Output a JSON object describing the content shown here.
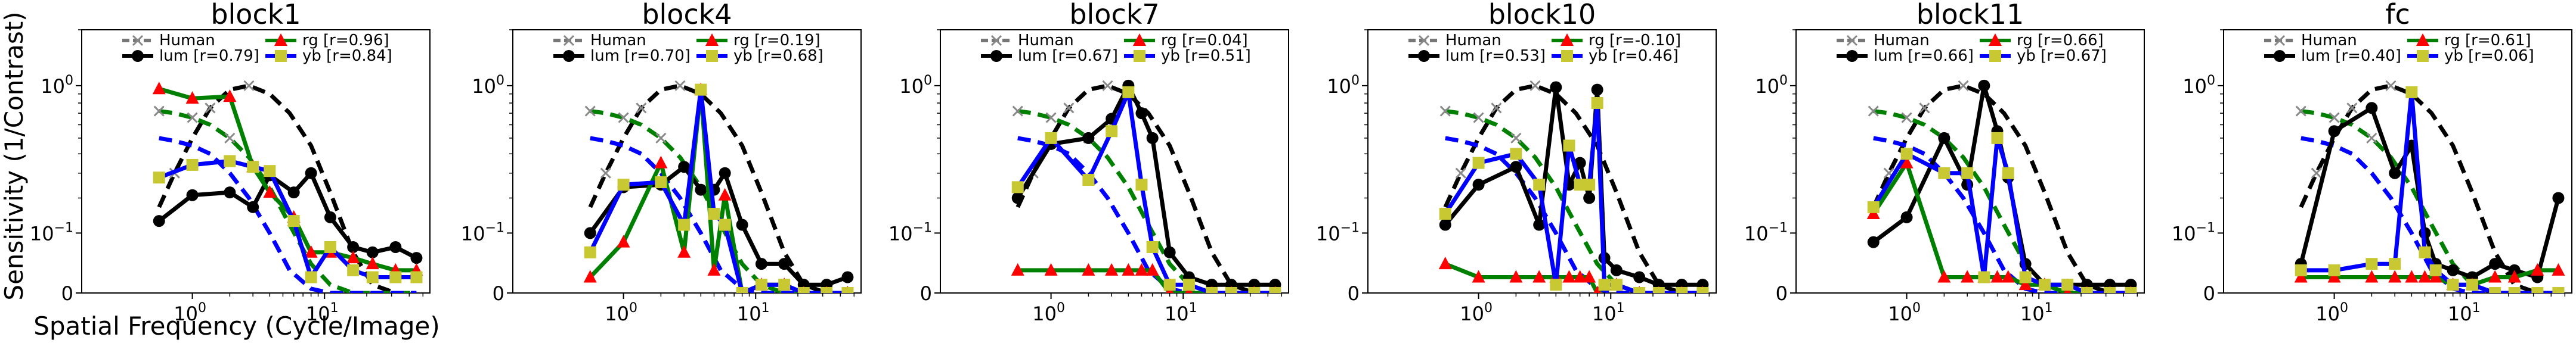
{
  "figure": {
    "ylabel": "Sensitivity (1/Contrast)",
    "xlabel": "Spatial Frequency (Cycle/Image)"
  },
  "legend_labels": {
    "human": "Human",
    "lum": "lum",
    "rg": "rg",
    "yb": "yb"
  },
  "colors": {
    "human": "#000000",
    "lum": "#000000",
    "rg": "#008000",
    "rg_marker": "#ff0000",
    "yb": "#0000ff",
    "yb_marker": "#c8c832"
  },
  "chart_data": [
    {
      "type": "line",
      "title": "block1",
      "xscale": "symlog",
      "yscale": "symlog",
      "xlim": [
        0,
        56
      ],
      "ylim": [
        0,
        2
      ],
      "xticks": [
        "10^0",
        "10^1"
      ],
      "yticks": [
        "0",
        "10^-1",
        "10^0"
      ],
      "legend_position": "top-center",
      "r": {
        "lum": "[r=0.79]",
        "rg": "[r=0.96]",
        "yb": "[r=0.84]"
      },
      "human": {
        "x": [
          0.5,
          0.7,
          1,
          1.4,
          2,
          2.8,
          4,
          5.6,
          8,
          11,
          16,
          22,
          32,
          45
        ],
        "lum": [
          0.17,
          0.3,
          0.5,
          0.75,
          0.95,
          1.0,
          0.9,
          0.7,
          0.45,
          0.22,
          0.06,
          0.01,
          0.0,
          0.0
        ],
        "rg": [
          0.72,
          0.7,
          0.66,
          0.6,
          0.5,
          0.38,
          0.24,
          0.12,
          0.04,
          0.01,
          0.0,
          0.0,
          0.0,
          0.0
        ],
        "yb": [
          0.5,
          0.48,
          0.45,
          0.4,
          0.3,
          0.2,
          0.1,
          0.03,
          0.005,
          0.0,
          0.0,
          0.0,
          0.0,
          0.0
        ]
      },
      "model_x": [
        0.5,
        1,
        2,
        3,
        4,
        6,
        8,
        11,
        16,
        22,
        32,
        45
      ],
      "lum": [
        0.13,
        0.21,
        0.22,
        0.17,
        0.29,
        0.22,
        0.3,
        0.14,
        0.07,
        0.06,
        0.07,
        0.05
      ],
      "rg": [
        0.96,
        0.85,
        0.87,
        0.33,
        0.22,
        0.14,
        0.06,
        0.06,
        0.05,
        0.04,
        0.03,
        0.03
      ],
      "yb": [
        0.28,
        0.34,
        0.36,
        0.33,
        0.31,
        0.13,
        0.02,
        0.07,
        0.03,
        0.02,
        0.02,
        0.02
      ]
    },
    {
      "type": "line",
      "title": "block4",
      "xscale": "symlog",
      "yscale": "symlog",
      "xlim": [
        0,
        56
      ],
      "ylim": [
        0,
        2
      ],
      "xticks": [
        "10^0",
        "10^1"
      ],
      "yticks": [
        "0",
        "10^-1",
        "10^0"
      ],
      "legend_position": "top-center",
      "r": {
        "lum": "[r=0.70]",
        "rg": "[r=0.19]",
        "yb": "[r=0.68]"
      },
      "human": {
        "x": [
          0.5,
          0.7,
          1,
          1.4,
          2,
          2.8,
          4,
          5.6,
          8,
          11,
          16,
          22,
          32,
          45
        ],
        "lum": [
          0.17,
          0.3,
          0.5,
          0.75,
          0.95,
          1.0,
          0.9,
          0.7,
          0.45,
          0.22,
          0.06,
          0.01,
          0.0,
          0.0
        ],
        "rg": [
          0.72,
          0.7,
          0.66,
          0.6,
          0.5,
          0.38,
          0.24,
          0.12,
          0.04,
          0.01,
          0.0,
          0.0,
          0.0,
          0.0
        ],
        "yb": [
          0.5,
          0.48,
          0.45,
          0.4,
          0.3,
          0.2,
          0.1,
          0.03,
          0.005,
          0.0,
          0.0,
          0.0,
          0.0,
          0.0
        ]
      },
      "model_x": [
        0.5,
        1,
        2,
        3,
        4,
        5,
        6,
        8,
        11,
        16,
        22,
        32,
        45
      ],
      "lum": [
        0.1,
        0.24,
        0.25,
        0.33,
        0.23,
        0.23,
        0.3,
        0.12,
        0.04,
        0.04,
        0.01,
        0.01,
        0.02
      ],
      "rg": [
        0.02,
        0.08,
        0.35,
        0.06,
        0.95,
        0.03,
        0.21,
        0.0,
        0.01,
        0.01,
        0.0,
        0.0,
        0.0
      ],
      "yb": [
        0.06,
        0.25,
        0.26,
        0.12,
        0.95,
        0.15,
        0.12,
        0.0,
        0.01,
        0.01,
        0.0,
        0.0,
        0.0
      ]
    },
    {
      "type": "line",
      "title": "block7",
      "xscale": "symlog",
      "yscale": "symlog",
      "xlim": [
        0,
        56
      ],
      "ylim": [
        0,
        2
      ],
      "xticks": [
        "10^0",
        "10^1"
      ],
      "yticks": [
        "0",
        "10^-1",
        "10^0"
      ],
      "legend_position": "top-center",
      "r": {
        "lum": "[r=0.67]",
        "rg": "[r=0.04]",
        "yb": "[r=0.51]"
      },
      "human": {
        "x": [
          0.5,
          0.7,
          1,
          1.4,
          2,
          2.8,
          4,
          5.6,
          8,
          11,
          16,
          22,
          32,
          45
        ],
        "lum": [
          0.17,
          0.3,
          0.5,
          0.75,
          0.95,
          1.0,
          0.9,
          0.7,
          0.45,
          0.22,
          0.06,
          0.01,
          0.0,
          0.0
        ],
        "rg": [
          0.72,
          0.7,
          0.66,
          0.6,
          0.5,
          0.38,
          0.24,
          0.12,
          0.04,
          0.01,
          0.0,
          0.0,
          0.0,
          0.0
        ],
        "yb": [
          0.5,
          0.48,
          0.45,
          0.4,
          0.3,
          0.2,
          0.1,
          0.03,
          0.005,
          0.0,
          0.0,
          0.0,
          0.0,
          0.0
        ]
      },
      "model_x": [
        0.5,
        1,
        2,
        3,
        4,
        5,
        6,
        8,
        11,
        16,
        22,
        32,
        45
      ],
      "lum": [
        0.2,
        0.46,
        0.5,
        0.65,
        1.0,
        0.7,
        0.5,
        0.06,
        0.02,
        0.01,
        0.01,
        0.01,
        0.01
      ],
      "rg": [
        0.03,
        0.03,
        0.03,
        0.03,
        0.03,
        0.03,
        0.03,
        0.0,
        0.0,
        0.0,
        0.0,
        0.0,
        0.0
      ],
      "yb": [
        0.24,
        0.5,
        0.27,
        0.55,
        0.92,
        0.25,
        0.07,
        0.01,
        0.01,
        0.0,
        0.0,
        0.0,
        0.0
      ]
    },
    {
      "type": "line",
      "title": "block10",
      "xscale": "symlog",
      "yscale": "symlog",
      "xlim": [
        0,
        56
      ],
      "ylim": [
        0,
        2
      ],
      "xticks": [
        "10^0",
        "10^1"
      ],
      "yticks": [
        "0",
        "10^-1",
        "10^0"
      ],
      "legend_position": "top-center",
      "r": {
        "lum": "[r=0.53]",
        "rg": "[r=-0.10]",
        "yb": "[r=0.46]"
      },
      "human": {
        "x": [
          0.5,
          0.7,
          1,
          1.4,
          2,
          2.8,
          4,
          5.6,
          8,
          11,
          16,
          22,
          32,
          45
        ],
        "lum": [
          0.17,
          0.3,
          0.5,
          0.75,
          0.95,
          1.0,
          0.9,
          0.7,
          0.45,
          0.22,
          0.06,
          0.01,
          0.0,
          0.0
        ],
        "rg": [
          0.72,
          0.7,
          0.66,
          0.6,
          0.5,
          0.38,
          0.24,
          0.12,
          0.04,
          0.01,
          0.0,
          0.0,
          0.0,
          0.0
        ],
        "yb": [
          0.5,
          0.48,
          0.45,
          0.4,
          0.3,
          0.2,
          0.1,
          0.03,
          0.005,
          0.0,
          0.0,
          0.0,
          0.0,
          0.0
        ]
      },
      "model_x": [
        0.5,
        1,
        2,
        3,
        4,
        5,
        6,
        7,
        8,
        9,
        11,
        16,
        22,
        32,
        45
      ],
      "lum": [
        0.12,
        0.25,
        0.33,
        0.12,
        0.98,
        0.25,
        0.35,
        0.2,
        0.95,
        0.05,
        0.03,
        0.02,
        0.01,
        0.01,
        0.01
      ],
      "rg": [
        0.04,
        0.02,
        0.02,
        0.02,
        0.02,
        0.02,
        0.02,
        0.02,
        0.0,
        0.01,
        0.01,
        0.0,
        0.0,
        0.0,
        0.0
      ],
      "yb": [
        0.15,
        0.35,
        0.4,
        0.25,
        0.01,
        0.45,
        0.25,
        0.25,
        0.8,
        0.01,
        0.01,
        0.0,
        0.0,
        0.0,
        0.0
      ]
    },
    {
      "type": "line",
      "title": "block11",
      "xscale": "symlog",
      "yscale": "symlog",
      "xlim": [
        0,
        56
      ],
      "ylim": [
        0,
        2
      ],
      "xticks": [
        "10^0",
        "10^1"
      ],
      "yticks": [
        "0",
        "10^-1",
        "10^0"
      ],
      "legend_position": "top-center",
      "r": {
        "lum": "[r=0.66]",
        "rg": "[r=0.66]",
        "yb": "[r=0.67]"
      },
      "human": {
        "x": [
          0.5,
          0.7,
          1,
          1.4,
          2,
          2.8,
          4,
          5.6,
          8,
          11,
          16,
          22,
          32,
          45
        ],
        "lum": [
          0.17,
          0.3,
          0.5,
          0.75,
          0.95,
          1.0,
          0.9,
          0.7,
          0.45,
          0.22,
          0.06,
          0.01,
          0.0,
          0.0
        ],
        "rg": [
          0.72,
          0.7,
          0.66,
          0.6,
          0.5,
          0.38,
          0.24,
          0.12,
          0.04,
          0.01,
          0.0,
          0.0,
          0.0,
          0.0
        ],
        "yb": [
          0.5,
          0.48,
          0.45,
          0.4,
          0.3,
          0.2,
          0.1,
          0.03,
          0.005,
          0.0,
          0.0,
          0.0,
          0.0,
          0.0
        ]
      },
      "model_x": [
        0.5,
        1,
        2,
        3,
        4,
        5,
        6,
        8,
        11,
        16,
        22,
        32,
        45
      ],
      "lum": [
        0.08,
        0.14,
        0.5,
        0.25,
        1.0,
        0.55,
        0.28,
        0.04,
        0.01,
        0.01,
        0.01,
        0.01,
        0.01
      ],
      "rg": [
        0.15,
        0.35,
        0.02,
        0.02,
        0.02,
        0.02,
        0.02,
        0.01,
        0.01,
        0.0,
        0.0,
        0.0,
        0.0
      ],
      "yb": [
        0.17,
        0.4,
        0.3,
        0.3,
        0.02,
        0.5,
        0.3,
        0.02,
        0.01,
        0.01,
        0.0,
        0.0,
        0.0
      ]
    },
    {
      "type": "line",
      "title": "fc",
      "xscale": "symlog",
      "yscale": "symlog",
      "xlim": [
        0,
        56
      ],
      "ylim": [
        0,
        2
      ],
      "xticks": [
        "10^0",
        "10^1"
      ],
      "yticks": [
        "0",
        "10^-1",
        "10^0"
      ],
      "legend_position": "top-center",
      "r": {
        "lum": "[r=0.40]",
        "rg": "[r=0.61]",
        "yb": "[r=0.06]"
      },
      "human": {
        "x": [
          0.5,
          0.7,
          1,
          1.4,
          2,
          2.8,
          4,
          5.6,
          8,
          11,
          16,
          22,
          32,
          45
        ],
        "lum": [
          0.17,
          0.3,
          0.5,
          0.75,
          0.95,
          1.0,
          0.9,
          0.7,
          0.45,
          0.22,
          0.06,
          0.01,
          0.0,
          0.0
        ],
        "rg": [
          0.72,
          0.7,
          0.66,
          0.6,
          0.5,
          0.38,
          0.24,
          0.12,
          0.04,
          0.01,
          0.0,
          0.0,
          0.0,
          0.0
        ],
        "yb": [
          0.5,
          0.48,
          0.45,
          0.4,
          0.3,
          0.2,
          0.1,
          0.03,
          0.005,
          0.0,
          0.0,
          0.0,
          0.0,
          0.0
        ]
      },
      "model_x": [
        0.5,
        1,
        2,
        3,
        4,
        5,
        6,
        8,
        11,
        16,
        22,
        32,
        45
      ],
      "lum": [
        0.04,
        0.55,
        0.75,
        0.3,
        0.45,
        0.1,
        0.04,
        0.03,
        0.02,
        0.04,
        0.03,
        0.02,
        0.2
      ],
      "rg": [
        0.02,
        0.02,
        0.02,
        0.02,
        0.02,
        0.02,
        0.02,
        0.01,
        0.01,
        0.02,
        0.02,
        0.03,
        0.03
      ],
      "yb": [
        0.03,
        0.03,
        0.04,
        0.04,
        0.92,
        0.06,
        0.03,
        0.01,
        0.01,
        0.0,
        0.0,
        0.0,
        0.0
      ]
    }
  ]
}
